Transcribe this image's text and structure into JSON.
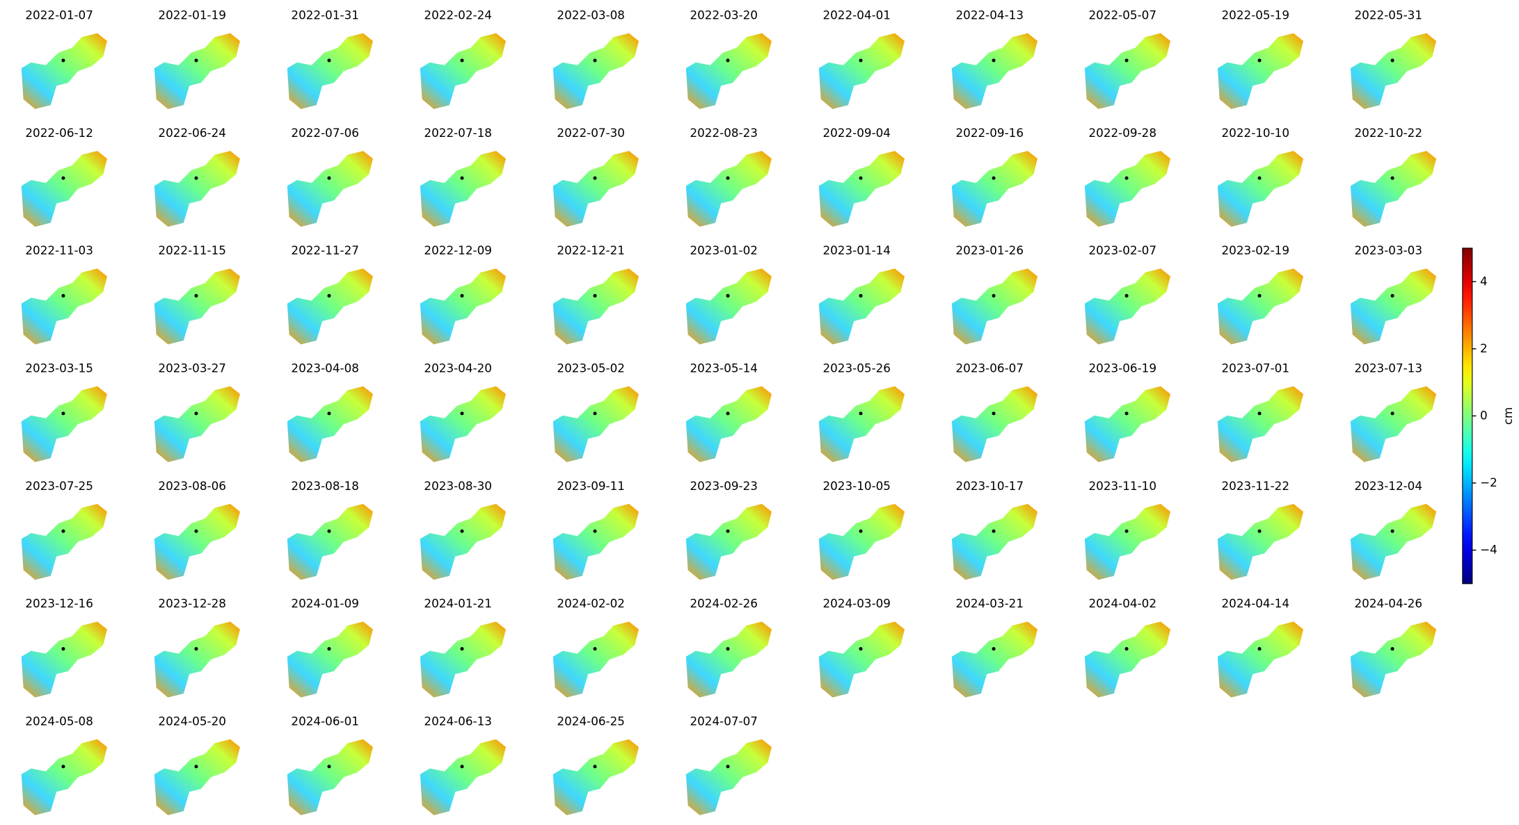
{
  "chart_data": {
    "type": "map-grid",
    "cmap": "jet",
    "panels": [
      "2022-01-07",
      "2022-01-19",
      "2022-01-31",
      "2022-02-24",
      "2022-03-08",
      "2022-03-20",
      "2022-04-01",
      "2022-04-13",
      "2022-05-07",
      "2022-05-19",
      "2022-05-31",
      "2022-06-12",
      "2022-06-24",
      "2022-07-06",
      "2022-07-18",
      "2022-07-30",
      "2022-08-23",
      "2022-09-04",
      "2022-09-16",
      "2022-09-28",
      "2022-10-10",
      "2022-10-22",
      "2022-11-03",
      "2022-11-15",
      "2022-11-27",
      "2022-12-09",
      "2022-12-21",
      "2023-01-02",
      "2023-01-14",
      "2023-01-26",
      "2023-02-07",
      "2023-02-19",
      "2023-03-03",
      "2023-03-15",
      "2023-03-27",
      "2023-04-08",
      "2023-04-20",
      "2023-05-02",
      "2023-05-14",
      "2023-05-26",
      "2023-06-07",
      "2023-06-19",
      "2023-07-01",
      "2023-07-13",
      "2023-07-25",
      "2023-08-06",
      "2023-08-18",
      "2023-08-30",
      "2023-09-11",
      "2023-09-23",
      "2023-10-05",
      "2023-10-17",
      "2023-11-10",
      "2023-11-22",
      "2023-12-04",
      "2023-12-16",
      "2023-12-28",
      "2024-01-09",
      "2024-01-21",
      "2024-02-02",
      "2024-02-26",
      "2024-03-09",
      "2024-03-21",
      "2024-04-02",
      "2024-04-14",
      "2024-04-26",
      "2024-05-08",
      "2024-05-20",
      "2024-06-01",
      "2024-06-13",
      "2024-06-25",
      "2024-07-07"
    ],
    "colorbar": {
      "label": "cm",
      "lim": [
        -5,
        5
      ],
      "ticks": [
        {
          "value": -4,
          "label": "−4"
        },
        {
          "value": -2,
          "label": "−2"
        },
        0,
        2,
        4
      ]
    }
  }
}
